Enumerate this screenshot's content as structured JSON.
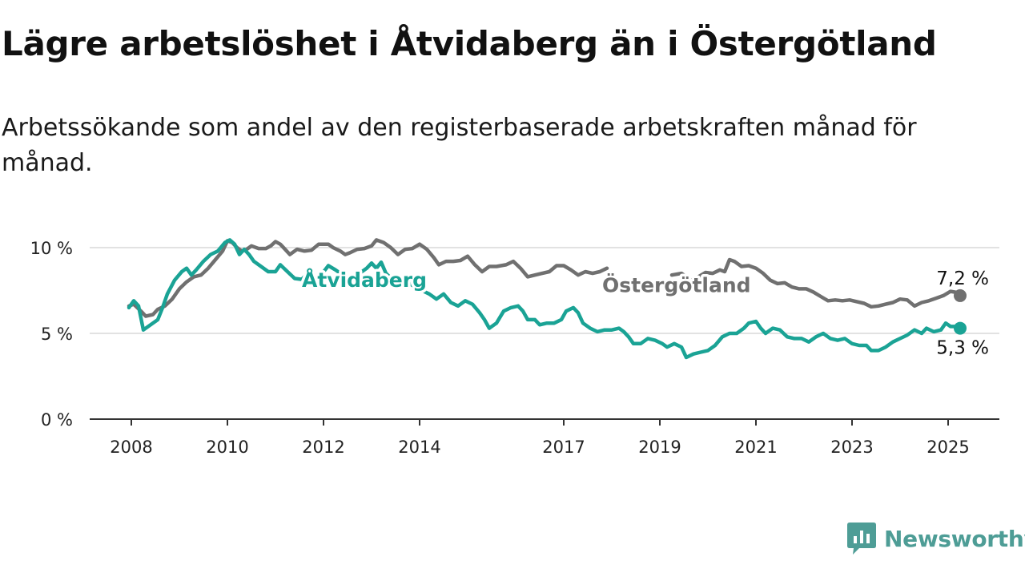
{
  "title": "Lägre arbetslöshet i Åtvidaberg än i Östergötland",
  "subtitle": "Arbetssökande som andel av den registerbaserade arbetskraften månad för månad.",
  "brand": {
    "name": "Newsworthy",
    "color": "#4e9d96"
  },
  "chart_data": {
    "type": "line",
    "ylim": [
      0,
      10.5
    ],
    "y_ticks": [
      {
        "value": 0,
        "label": "0 %"
      },
      {
        "value": 5,
        "label": "5 %"
      },
      {
        "value": 10,
        "label": "10 %"
      }
    ],
    "x_ticks": [
      {
        "value": 2008,
        "label": "2008"
      },
      {
        "value": 2010,
        "label": "2010"
      },
      {
        "value": 2012,
        "label": "2012"
      },
      {
        "value": 2014,
        "label": "2014"
      },
      {
        "value": 2017,
        "label": "2017"
      },
      {
        "value": 2019,
        "label": "2019"
      },
      {
        "value": 2021,
        "label": "2021"
      },
      {
        "value": 2023,
        "label": "2023"
      },
      {
        "value": 2025,
        "label": "2025"
      }
    ],
    "grid": "horizontal",
    "series": [
      {
        "name": "Östergötland",
        "color": "#707070",
        "end_value": 7.2,
        "end_label": "7,2 %",
        "points": [
          [
            2007.95,
            6.6
          ],
          [
            2008.05,
            6.7
          ],
          [
            2008.2,
            6.3
          ],
          [
            2008.3,
            6.0
          ],
          [
            2008.45,
            6.1
          ],
          [
            2008.55,
            6.4
          ],
          [
            2008.7,
            6.6
          ],
          [
            2008.85,
            7.0
          ],
          [
            2009.0,
            7.6
          ],
          [
            2009.15,
            8.0
          ],
          [
            2009.3,
            8.3
          ],
          [
            2009.45,
            8.4
          ],
          [
            2009.6,
            8.8
          ],
          [
            2009.75,
            9.3
          ],
          [
            2009.9,
            9.8
          ],
          [
            2010.0,
            10.4
          ],
          [
            2010.1,
            10.3
          ],
          [
            2010.2,
            10.0
          ],
          [
            2010.3,
            9.8
          ],
          [
            2010.4,
            9.9
          ],
          [
            2010.5,
            10.1
          ],
          [
            2010.65,
            9.95
          ],
          [
            2010.8,
            9.95
          ],
          [
            2010.9,
            10.1
          ],
          [
            2011.0,
            10.35
          ],
          [
            2011.1,
            10.2
          ],
          [
            2011.2,
            9.9
          ],
          [
            2011.3,
            9.6
          ],
          [
            2011.45,
            9.9
          ],
          [
            2011.6,
            9.8
          ],
          [
            2011.75,
            9.85
          ],
          [
            2011.9,
            10.2
          ],
          [
            2012.1,
            10.2
          ],
          [
            2012.2,
            10.0
          ],
          [
            2012.35,
            9.8
          ],
          [
            2012.45,
            9.6
          ],
          [
            2012.55,
            9.7
          ],
          [
            2012.7,
            9.9
          ],
          [
            2012.85,
            9.95
          ],
          [
            2013.0,
            10.1
          ],
          [
            2013.1,
            10.45
          ],
          [
            2013.25,
            10.3
          ],
          [
            2013.4,
            10.0
          ],
          [
            2013.55,
            9.6
          ],
          [
            2013.7,
            9.9
          ],
          [
            2013.85,
            9.95
          ],
          [
            2014.0,
            10.2
          ],
          [
            2014.15,
            9.9
          ],
          [
            2014.3,
            9.4
          ],
          [
            2014.4,
            9.0
          ],
          [
            2014.55,
            9.2
          ],
          [
            2014.7,
            9.2
          ],
          [
            2014.85,
            9.25
          ],
          [
            2015.0,
            9.5
          ],
          [
            2015.15,
            9.0
          ],
          [
            2015.3,
            8.6
          ],
          [
            2015.45,
            8.9
          ],
          [
            2015.6,
            8.9
          ],
          [
            2015.8,
            9.0
          ],
          [
            2015.95,
            9.2
          ],
          [
            2016.1,
            8.8
          ],
          [
            2016.25,
            8.3
          ],
          [
            2016.4,
            8.4
          ],
          [
            2016.55,
            8.5
          ],
          [
            2016.7,
            8.6
          ],
          [
            2016.85,
            8.95
          ],
          [
            2017.0,
            8.95
          ],
          [
            2017.15,
            8.7
          ],
          [
            2017.3,
            8.4
          ],
          [
            2017.45,
            8.6
          ],
          [
            2017.6,
            8.5
          ],
          [
            2017.75,
            8.6
          ],
          [
            2017.9,
            8.8
          ],
          null,
          [
            2019.25,
            8.4
          ],
          [
            2019.45,
            8.5
          ],
          [
            2019.65,
            8.1
          ],
          [
            2019.8,
            8.3
          ],
          [
            2019.95,
            8.55
          ],
          [
            2020.1,
            8.5
          ],
          [
            2020.25,
            8.7
          ],
          [
            2020.35,
            8.6
          ],
          [
            2020.45,
            9.3
          ],
          [
            2020.55,
            9.2
          ],
          [
            2020.7,
            8.9
          ],
          [
            2020.85,
            8.95
          ],
          [
            2021.0,
            8.8
          ],
          [
            2021.15,
            8.5
          ],
          [
            2021.3,
            8.1
          ],
          [
            2021.45,
            7.9
          ],
          [
            2021.6,
            7.95
          ],
          [
            2021.75,
            7.7
          ],
          [
            2021.9,
            7.6
          ],
          [
            2022.05,
            7.6
          ],
          [
            2022.2,
            7.4
          ],
          [
            2022.35,
            7.15
          ],
          [
            2022.5,
            6.9
          ],
          [
            2022.65,
            6.95
          ],
          [
            2022.8,
            6.9
          ],
          [
            2022.95,
            6.95
          ],
          [
            2023.1,
            6.85
          ],
          [
            2023.25,
            6.75
          ],
          [
            2023.4,
            6.55
          ],
          [
            2023.55,
            6.6
          ],
          [
            2023.7,
            6.7
          ],
          [
            2023.85,
            6.8
          ],
          [
            2024.0,
            7.0
          ],
          [
            2024.15,
            6.95
          ],
          [
            2024.3,
            6.6
          ],
          [
            2024.45,
            6.8
          ],
          [
            2024.6,
            6.9
          ],
          [
            2024.75,
            7.05
          ],
          [
            2024.9,
            7.2
          ],
          [
            2025.05,
            7.45
          ],
          [
            2025.15,
            7.4
          ],
          [
            2025.25,
            7.2
          ]
        ]
      },
      {
        "name": "Åtvidaberg",
        "color": "#1aa395",
        "end_value": 5.3,
        "end_label": "5,3 %",
        "points": [
          [
            2007.95,
            6.5
          ],
          [
            2008.05,
            6.9
          ],
          [
            2008.15,
            6.6
          ],
          [
            2008.25,
            5.2
          ],
          [
            2008.35,
            5.4
          ],
          [
            2008.45,
            5.6
          ],
          [
            2008.55,
            5.8
          ],
          [
            2008.65,
            6.5
          ],
          [
            2008.75,
            7.3
          ],
          [
            2008.9,
            8.1
          ],
          [
            2009.05,
            8.6
          ],
          [
            2009.15,
            8.8
          ],
          [
            2009.25,
            8.4
          ],
          [
            2009.35,
            8.7
          ],
          [
            2009.5,
            9.2
          ],
          [
            2009.65,
            9.6
          ],
          [
            2009.8,
            9.8
          ],
          [
            2009.95,
            10.3
          ],
          [
            2010.05,
            10.45
          ],
          [
            2010.15,
            10.2
          ],
          [
            2010.25,
            9.6
          ],
          [
            2010.35,
            9.9
          ],
          [
            2010.45,
            9.6
          ],
          [
            2010.55,
            9.2
          ],
          [
            2010.7,
            8.9
          ],
          [
            2010.85,
            8.6
          ],
          [
            2011.0,
            8.6
          ],
          [
            2011.1,
            9.0
          ],
          [
            2011.25,
            8.6
          ],
          [
            2011.4,
            8.2
          ],
          [
            2011.55,
            8.15
          ],
          [
            2011.7,
            8.6
          ],
          [
            2011.8,
            8.2
          ],
          [
            2011.95,
            8.4
          ],
          [
            2012.1,
            8.95
          ],
          [
            2012.25,
            8.7
          ],
          [
            2012.4,
            8.4
          ],
          [
            2012.6,
            8.2
          ],
          [
            2012.75,
            8.5
          ],
          [
            2012.9,
            8.8
          ],
          [
            2013.0,
            9.1
          ],
          [
            2013.1,
            8.8
          ],
          [
            2013.2,
            9.15
          ],
          [
            2013.3,
            8.5
          ],
          [
            2013.45,
            8.1
          ],
          [
            2013.6,
            7.9
          ],
          [
            2013.75,
            8.0
          ],
          [
            2013.9,
            7.7
          ],
          [
            2014.05,
            7.5
          ],
          [
            2014.2,
            7.3
          ],
          [
            2014.35,
            7.0
          ],
          [
            2014.5,
            7.3
          ],
          [
            2014.65,
            6.8
          ],
          [
            2014.8,
            6.6
          ],
          [
            2014.95,
            6.9
          ],
          [
            2015.1,
            6.7
          ],
          [
            2015.25,
            6.2
          ],
          [
            2015.35,
            5.8
          ],
          [
            2015.45,
            5.3
          ],
          [
            2015.6,
            5.6
          ],
          [
            2015.75,
            6.3
          ],
          [
            2015.9,
            6.5
          ],
          [
            2016.05,
            6.6
          ],
          [
            2016.15,
            6.3
          ],
          [
            2016.25,
            5.8
          ],
          [
            2016.4,
            5.8
          ],
          [
            2016.5,
            5.5
          ],
          [
            2016.65,
            5.6
          ],
          [
            2016.8,
            5.6
          ],
          [
            2016.95,
            5.8
          ],
          [
            2017.05,
            6.3
          ],
          [
            2017.2,
            6.5
          ],
          [
            2017.3,
            6.2
          ],
          [
            2017.4,
            5.6
          ],
          [
            2017.55,
            5.3
          ],
          [
            2017.7,
            5.1
          ],
          [
            2017.85,
            5.2
          ],
          [
            2018.0,
            5.2
          ],
          [
            2018.15,
            5.3
          ],
          [
            2018.25,
            5.1
          ],
          [
            2018.35,
            4.8
          ],
          [
            2018.45,
            4.4
          ],
          [
            2018.6,
            4.4
          ],
          [
            2018.75,
            4.7
          ],
          [
            2018.9,
            4.6
          ],
          [
            2019.05,
            4.4
          ],
          [
            2019.15,
            4.2
          ],
          [
            2019.3,
            4.4
          ],
          [
            2019.45,
            4.2
          ],
          [
            2019.55,
            3.6
          ],
          [
            2019.7,
            3.8
          ],
          [
            2019.85,
            3.9
          ],
          [
            2020.0,
            4.0
          ],
          [
            2020.15,
            4.3
          ],
          [
            2020.3,
            4.8
          ],
          [
            2020.45,
            5.0
          ],
          [
            2020.6,
            5.0
          ],
          [
            2020.75,
            5.3
          ],
          [
            2020.85,
            5.6
          ],
          [
            2021.0,
            5.7
          ],
          [
            2021.1,
            5.3
          ],
          [
            2021.2,
            5.0
          ],
          [
            2021.35,
            5.3
          ],
          [
            2021.5,
            5.2
          ],
          [
            2021.65,
            4.8
          ],
          [
            2021.8,
            4.7
          ],
          [
            2021.95,
            4.7
          ],
          [
            2022.1,
            4.5
          ],
          [
            2022.25,
            4.8
          ],
          [
            2022.4,
            5.0
          ],
          [
            2022.55,
            4.7
          ],
          [
            2022.7,
            4.6
          ],
          [
            2022.85,
            4.7
          ],
          [
            2023.0,
            4.4
          ],
          [
            2023.15,
            4.3
          ],
          [
            2023.3,
            4.3
          ],
          [
            2023.4,
            4.0
          ],
          [
            2023.55,
            4.0
          ],
          [
            2023.7,
            4.2
          ],
          [
            2023.85,
            4.5
          ],
          [
            2024.0,
            4.7
          ],
          [
            2024.15,
            4.9
          ],
          [
            2024.3,
            5.2
          ],
          [
            2024.45,
            5.0
          ],
          [
            2024.55,
            5.3
          ],
          [
            2024.7,
            5.1
          ],
          [
            2024.85,
            5.2
          ],
          [
            2024.95,
            5.6
          ],
          [
            2025.05,
            5.4
          ],
          [
            2025.2,
            5.4
          ],
          [
            2025.25,
            5.3
          ]
        ]
      }
    ]
  }
}
